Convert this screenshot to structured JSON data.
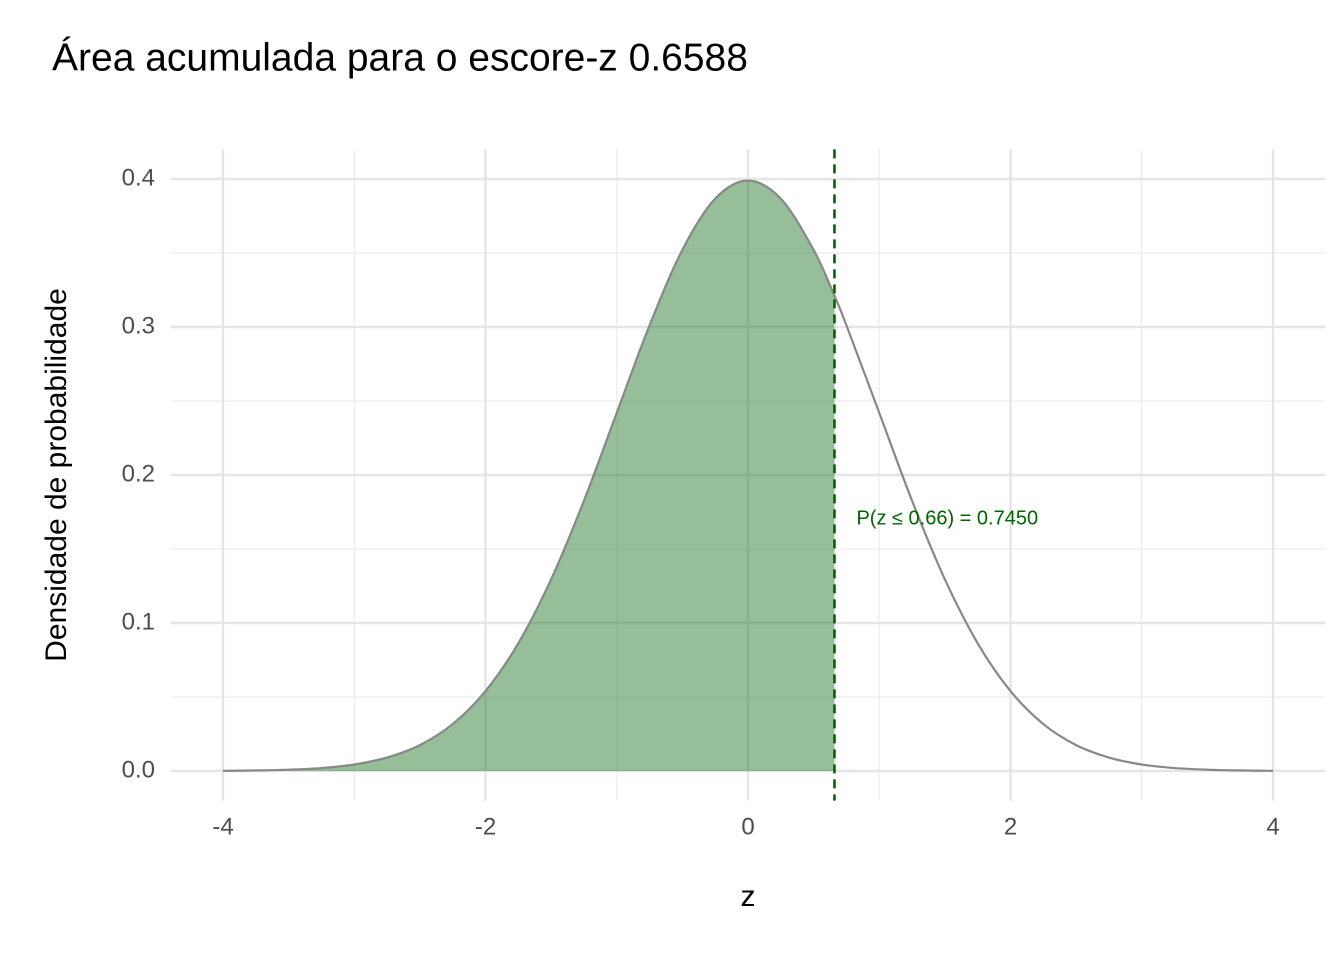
{
  "chart_data": {
    "type": "area",
    "title": "Área acumulada para o escore-z 0.6588",
    "x_label": "z",
    "y_label": "Densidade de probabilidade",
    "x": [
      -4,
      -3.75,
      -3.5,
      -3.25,
      -3,
      -2.75,
      -2.5,
      -2.25,
      -2,
      -1.75,
      -1.5,
      -1.25,
      -1,
      -0.75,
      -0.5,
      -0.25,
      0,
      0.25,
      0.5,
      0.6588,
      0.75,
      1,
      1.25,
      1.5,
      1.75,
      2,
      2.25,
      2.5,
      2.75,
      3,
      3.25,
      3.5,
      3.75,
      4
    ],
    "values": [
      0.0001,
      0.0004,
      0.0009,
      0.002,
      0.0044,
      0.0091,
      0.0175,
      0.0317,
      0.054,
      0.0863,
      0.1295,
      0.1826,
      0.242,
      0.3011,
      0.3521,
      0.3867,
      0.3989,
      0.3867,
      0.3521,
      0.3211,
      0.3011,
      0.242,
      0.1826,
      0.1295,
      0.0863,
      0.054,
      0.0317,
      0.0175,
      0.0091,
      0.0044,
      0.002,
      0.0009,
      0.0004,
      0.0001
    ],
    "color": "#888888",
    "shaded_x": [
      -4,
      -3.75,
      -3.5,
      -3.25,
      -3,
      -2.75,
      -2.5,
      -2.25,
      -2,
      -1.75,
      -1.5,
      -1.25,
      -1,
      -0.75,
      -0.5,
      -0.25,
      0,
      0.25,
      0.5,
      0.6588
    ],
    "shaded_values": [
      0.0001,
      0.0004,
      0.0009,
      0.002,
      0.0044,
      0.0091,
      0.0175,
      0.0317,
      0.054,
      0.0863,
      0.1295,
      0.1826,
      0.242,
      0.3011,
      0.3521,
      0.3867,
      0.3989,
      0.3867,
      0.3521,
      0.3211
    ],
    "shaded_color": "#2e7d32",
    "vline": 0.6588,
    "vline_color": "#006400",
    "annotation": "P(z ≤ 0.66) = 0.7450",
    "xlim": [
      -4.4,
      4.4
    ],
    "xticks": [
      -4,
      -2,
      0,
      2,
      4
    ],
    "ylim": [
      -0.02,
      0.42
    ],
    "yticks": [
      0,
      0.1,
      0.2,
      0.3,
      0.4
    ],
    "y_tick_labels": [
      "0.0",
      "0.1",
      "0.2",
      "0.3",
      "0.4"
    ],
    "grid": true
  }
}
